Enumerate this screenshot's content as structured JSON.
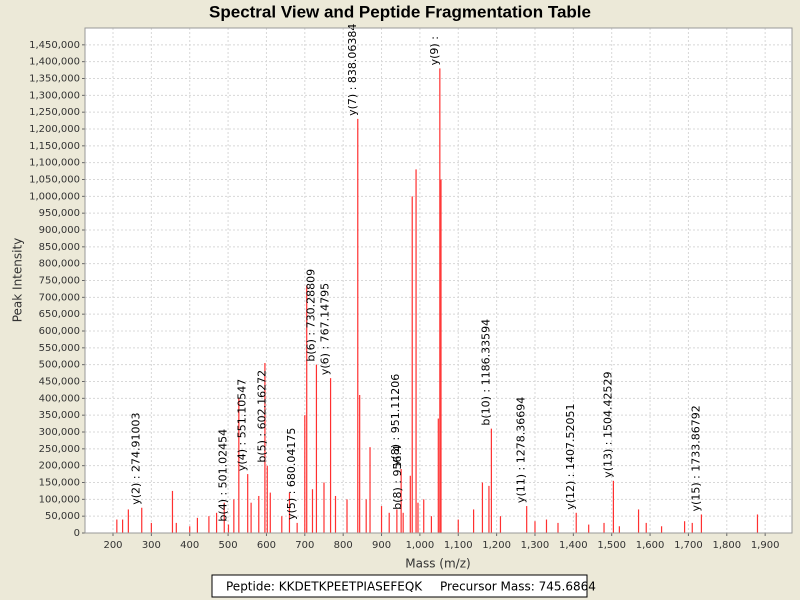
{
  "chart_data": {
    "type": "spectrum",
    "title": "Spectral View and Peptide Fragmentation Table",
    "x_label": "Mass (m/z)",
    "y_label": "Peak Intensity",
    "xlim": [
      127,
      1970
    ],
    "ylim": [
      0,
      1500000
    ],
    "grid": true,
    "xticks": [
      200,
      300,
      400,
      500,
      600,
      700,
      800,
      900,
      {
        "value": 1000,
        "label": "1,000"
      },
      {
        "value": 1100,
        "label": "1,100"
      },
      {
        "value": 1200,
        "label": "1,200"
      },
      {
        "value": 1300,
        "label": "1,300"
      },
      {
        "value": 1400,
        "label": "1,400"
      },
      {
        "value": 1500,
        "label": "1,500"
      },
      {
        "value": 1600,
        "label": "1,600"
      },
      {
        "value": 1700,
        "label": "1,700"
      },
      {
        "value": 1800,
        "label": "1,800"
      },
      {
        "value": 1900,
        "label": "1,900"
      }
    ],
    "yticks": [
      0,
      {
        "value": 50000,
        "label": "50,000"
      },
      {
        "value": 100000,
        "label": "100,000"
      },
      {
        "value": 150000,
        "label": "150,000"
      },
      {
        "value": 200000,
        "label": "200,000"
      },
      {
        "value": 250000,
        "label": "250,000"
      },
      {
        "value": 300000,
        "label": "300,000"
      },
      {
        "value": 350000,
        "label": "350,000"
      },
      {
        "value": 400000,
        "label": "400,000"
      },
      {
        "value": 450000,
        "label": "450,000"
      },
      {
        "value": 500000,
        "label": "500,000"
      },
      {
        "value": 550000,
        "label": "550,000"
      },
      {
        "value": 600000,
        "label": "600,000"
      },
      {
        "value": 650000,
        "label": "650,000"
      },
      {
        "value": 700000,
        "label": "700,000"
      },
      {
        "value": 750000,
        "label": "750,000"
      },
      {
        "value": 800000,
        "label": "800,000"
      },
      {
        "value": 850000,
        "label": "850,000"
      },
      {
        "value": 900000,
        "label": "900,000"
      },
      {
        "value": 950000,
        "label": "950,000"
      },
      {
        "value": 1000000,
        "label": "1,000,000"
      },
      {
        "value": 1050000,
        "label": "1,050,000"
      },
      {
        "value": 1100000,
        "label": "1,100,000"
      },
      {
        "value": 1150000,
        "label": "1,150,000"
      },
      {
        "value": 1200000,
        "label": "1,200,000"
      },
      {
        "value": 1250000,
        "label": "1,250,000"
      },
      {
        "value": 1300000,
        "label": "1,300,000"
      },
      {
        "value": 1350000,
        "label": "1,350,000"
      },
      {
        "value": 1400000,
        "label": "1,400,000"
      },
      {
        "value": 1450000,
        "label": "1,450,000"
      }
    ],
    "series": [
      {
        "color": "#ff3030",
        "x": [
          210,
          225,
          240,
          274.91,
          300,
          355,
          365,
          400,
          420,
          450,
          470,
          490,
          501.02,
          515,
          528,
          551.11,
          560,
          580,
          596,
          602.16,
          610,
          640,
          660,
          680.04,
          700,
          705,
          720,
          730.29,
          750,
          767.15,
          780,
          810,
          838.06,
          843,
          860,
          870,
          900,
          920,
          940,
          951.11,
          956.4,
          975,
          980,
          990,
          995,
          1010,
          1030,
          1048,
          1052,
          1055,
          1100,
          1140,
          1163,
          1180,
          1186.34,
          1210,
          1278.37,
          1300,
          1330,
          1360,
          1407.52,
          1440,
          1480,
          1504.43,
          1520,
          1570,
          1590,
          1630,
          1690,
          1710,
          1733.87,
          1880
        ],
        "values": [
          40000,
          40000,
          70000,
          75000,
          30000,
          125000,
          30000,
          20000,
          45000,
          50000,
          60000,
          90000,
          25000,
          100000,
          400000,
          175000,
          90000,
          110000,
          505000,
          200000,
          120000,
          50000,
          120000,
          30000,
          350000,
          735000,
          130000,
          500000,
          150000,
          460000,
          110000,
          100000,
          1230000,
          410000,
          100000,
          255000,
          80000,
          60000,
          70000,
          190000,
          60000,
          170000,
          1000000,
          1080000,
          90000,
          100000,
          50000,
          340000,
          1380000,
          1050000,
          40000,
          70000,
          150000,
          140000,
          310000,
          50000,
          80000,
          35000,
          40000,
          30000,
          60000,
          25000,
          30000,
          155000,
          20000,
          70000,
          30000,
          20000,
          35000,
          30000,
          55000,
          55000
        ]
      }
    ],
    "annotations": [
      {
        "text": "y(2) : 274.91003",
        "x": 274.91,
        "y": 75000
      },
      {
        "text": "b(4) : 501.02454",
        "x": 501.02,
        "y": 25000
      },
      {
        "text": "y(4) : 551.10547",
        "x": 551.11,
        "y": 175000
      },
      {
        "text": "b(5) : 602.16272",
        "x": 602.16,
        "y": 200000
      },
      {
        "text": "y(5) : 680.04175",
        "x": 680.04,
        "y": 30000
      },
      {
        "text": "b(6) : 730.28809",
        "x": 730.29,
        "y": 500000
      },
      {
        "text": "y(6) : 767.14795",
        "x": 767.15,
        "y": 460000
      },
      {
        "text": "y(7) : 838.06384",
        "x": 838.06,
        "y": 1230000
      },
      {
        "text": "b(8) : 956.4",
        "x": 956.4,
        "y": 60000
      },
      {
        "text": "y(8) : 951.11206",
        "x": 951.11,
        "y": 190000
      },
      {
        "text": "y(9) :",
        "x": 1052,
        "y": 1380000
      },
      {
        "text": "b(10) : 1186.33594",
        "x": 1186.34,
        "y": 310000
      },
      {
        "text": "y(11) : 1278.36694",
        "x": 1278.37,
        "y": 80000
      },
      {
        "text": "y(12) : 1407.52051",
        "x": 1407.52,
        "y": 60000
      },
      {
        "text": "y(13) : 1504.42529",
        "x": 1504.43,
        "y": 155000
      },
      {
        "text": "y(15) : 1733.86792",
        "x": 1733.87,
        "y": 55000
      }
    ],
    "footer": {
      "peptide": "Peptide: KKDETKPEETPIASEFEQK",
      "precursor": "Precursor Mass: 745.6864"
    }
  }
}
